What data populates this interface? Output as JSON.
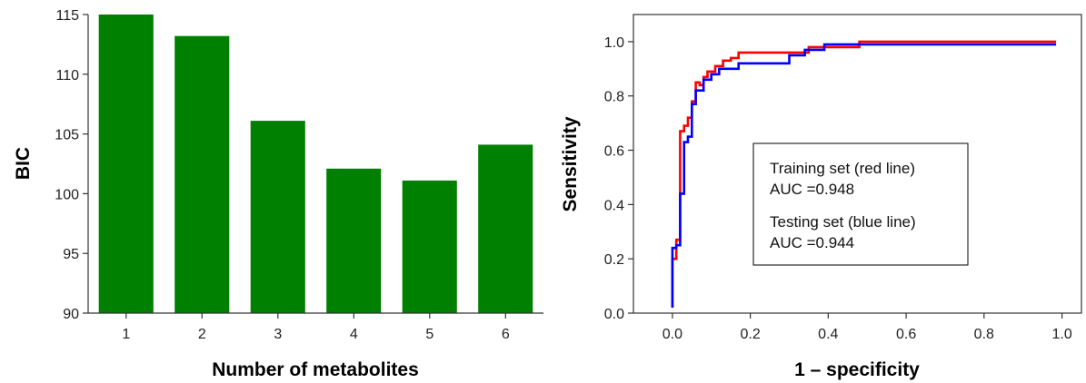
{
  "chart_data": [
    {
      "type": "bar",
      "title": "",
      "xlabel": "Number of metabolites",
      "ylabel": "BIC",
      "categories": [
        "1",
        "2",
        "3",
        "4",
        "5",
        "6"
      ],
      "values": [
        115,
        113.2,
        106.1,
        102.1,
        101.1,
        104.1
      ],
      "ylim": [
        90,
        115
      ],
      "yticks": [
        90,
        95,
        100,
        105,
        110,
        115
      ],
      "bar_color": "#008000",
      "grid": false
    },
    {
      "type": "line",
      "title": "",
      "xlabel": "1 – specificity",
      "ylabel": "Sensitivity",
      "xlim": [
        -0.1,
        1.05
      ],
      "ylim": [
        0.0,
        1.1
      ],
      "xticks": [
        0.0,
        0.2,
        0.4,
        0.6,
        0.8,
        1.0
      ],
      "yticks": [
        0.0,
        0.2,
        0.4,
        0.6,
        0.8,
        1.0
      ],
      "xtick_labels": [
        "0.0",
        "0.2",
        "0.4",
        "0.6",
        "0.8",
        "1.0"
      ],
      "ytick_labels": [
        "0.0",
        "0.2",
        "0.4",
        "0.6",
        "0.8",
        "1.0"
      ],
      "grid": false,
      "legend_position": "center-right",
      "legend": {
        "line1": "Training set (red line)",
        "line2": "AUC =0.948",
        "line3": "Testing set (blue line)",
        "line4": "AUC =0.944"
      },
      "series": [
        {
          "color": "#ff0000",
          "x": [
            0.0,
            0.0,
            0.01,
            0.01,
            0.02,
            0.02,
            0.03,
            0.03,
            0.04,
            0.04,
            0.05,
            0.05,
            0.06,
            0.06,
            0.07,
            0.07,
            0.08,
            0.08,
            0.09,
            0.09,
            0.11,
            0.11,
            0.13,
            0.13,
            0.15,
            0.15,
            0.17,
            0.17,
            0.35,
            0.35,
            0.48,
            0.48,
            0.985
          ],
          "y": [
            0.02,
            0.2,
            0.2,
            0.27,
            0.27,
            0.67,
            0.67,
            0.69,
            0.69,
            0.72,
            0.72,
            0.78,
            0.78,
            0.85,
            0.85,
            0.84,
            0.84,
            0.87,
            0.87,
            0.89,
            0.89,
            0.91,
            0.91,
            0.93,
            0.93,
            0.94,
            0.94,
            0.96,
            0.96,
            0.98,
            0.98,
            1.0,
            1.0
          ]
        },
        {
          "color": "#0000ff",
          "x": [
            0.0,
            0.0,
            0.01,
            0.01,
            0.02,
            0.02,
            0.03,
            0.03,
            0.04,
            0.04,
            0.05,
            0.05,
            0.06,
            0.06,
            0.08,
            0.08,
            0.1,
            0.1,
            0.12,
            0.12,
            0.17,
            0.17,
            0.3,
            0.3,
            0.34,
            0.34,
            0.39,
            0.39,
            0.985
          ],
          "y": [
            0.02,
            0.24,
            0.24,
            0.25,
            0.25,
            0.44,
            0.44,
            0.63,
            0.63,
            0.65,
            0.65,
            0.77,
            0.77,
            0.82,
            0.82,
            0.86,
            0.86,
            0.88,
            0.88,
            0.9,
            0.9,
            0.92,
            0.92,
            0.95,
            0.95,
            0.97,
            0.97,
            0.99,
            0.99
          ]
        }
      ]
    }
  ]
}
